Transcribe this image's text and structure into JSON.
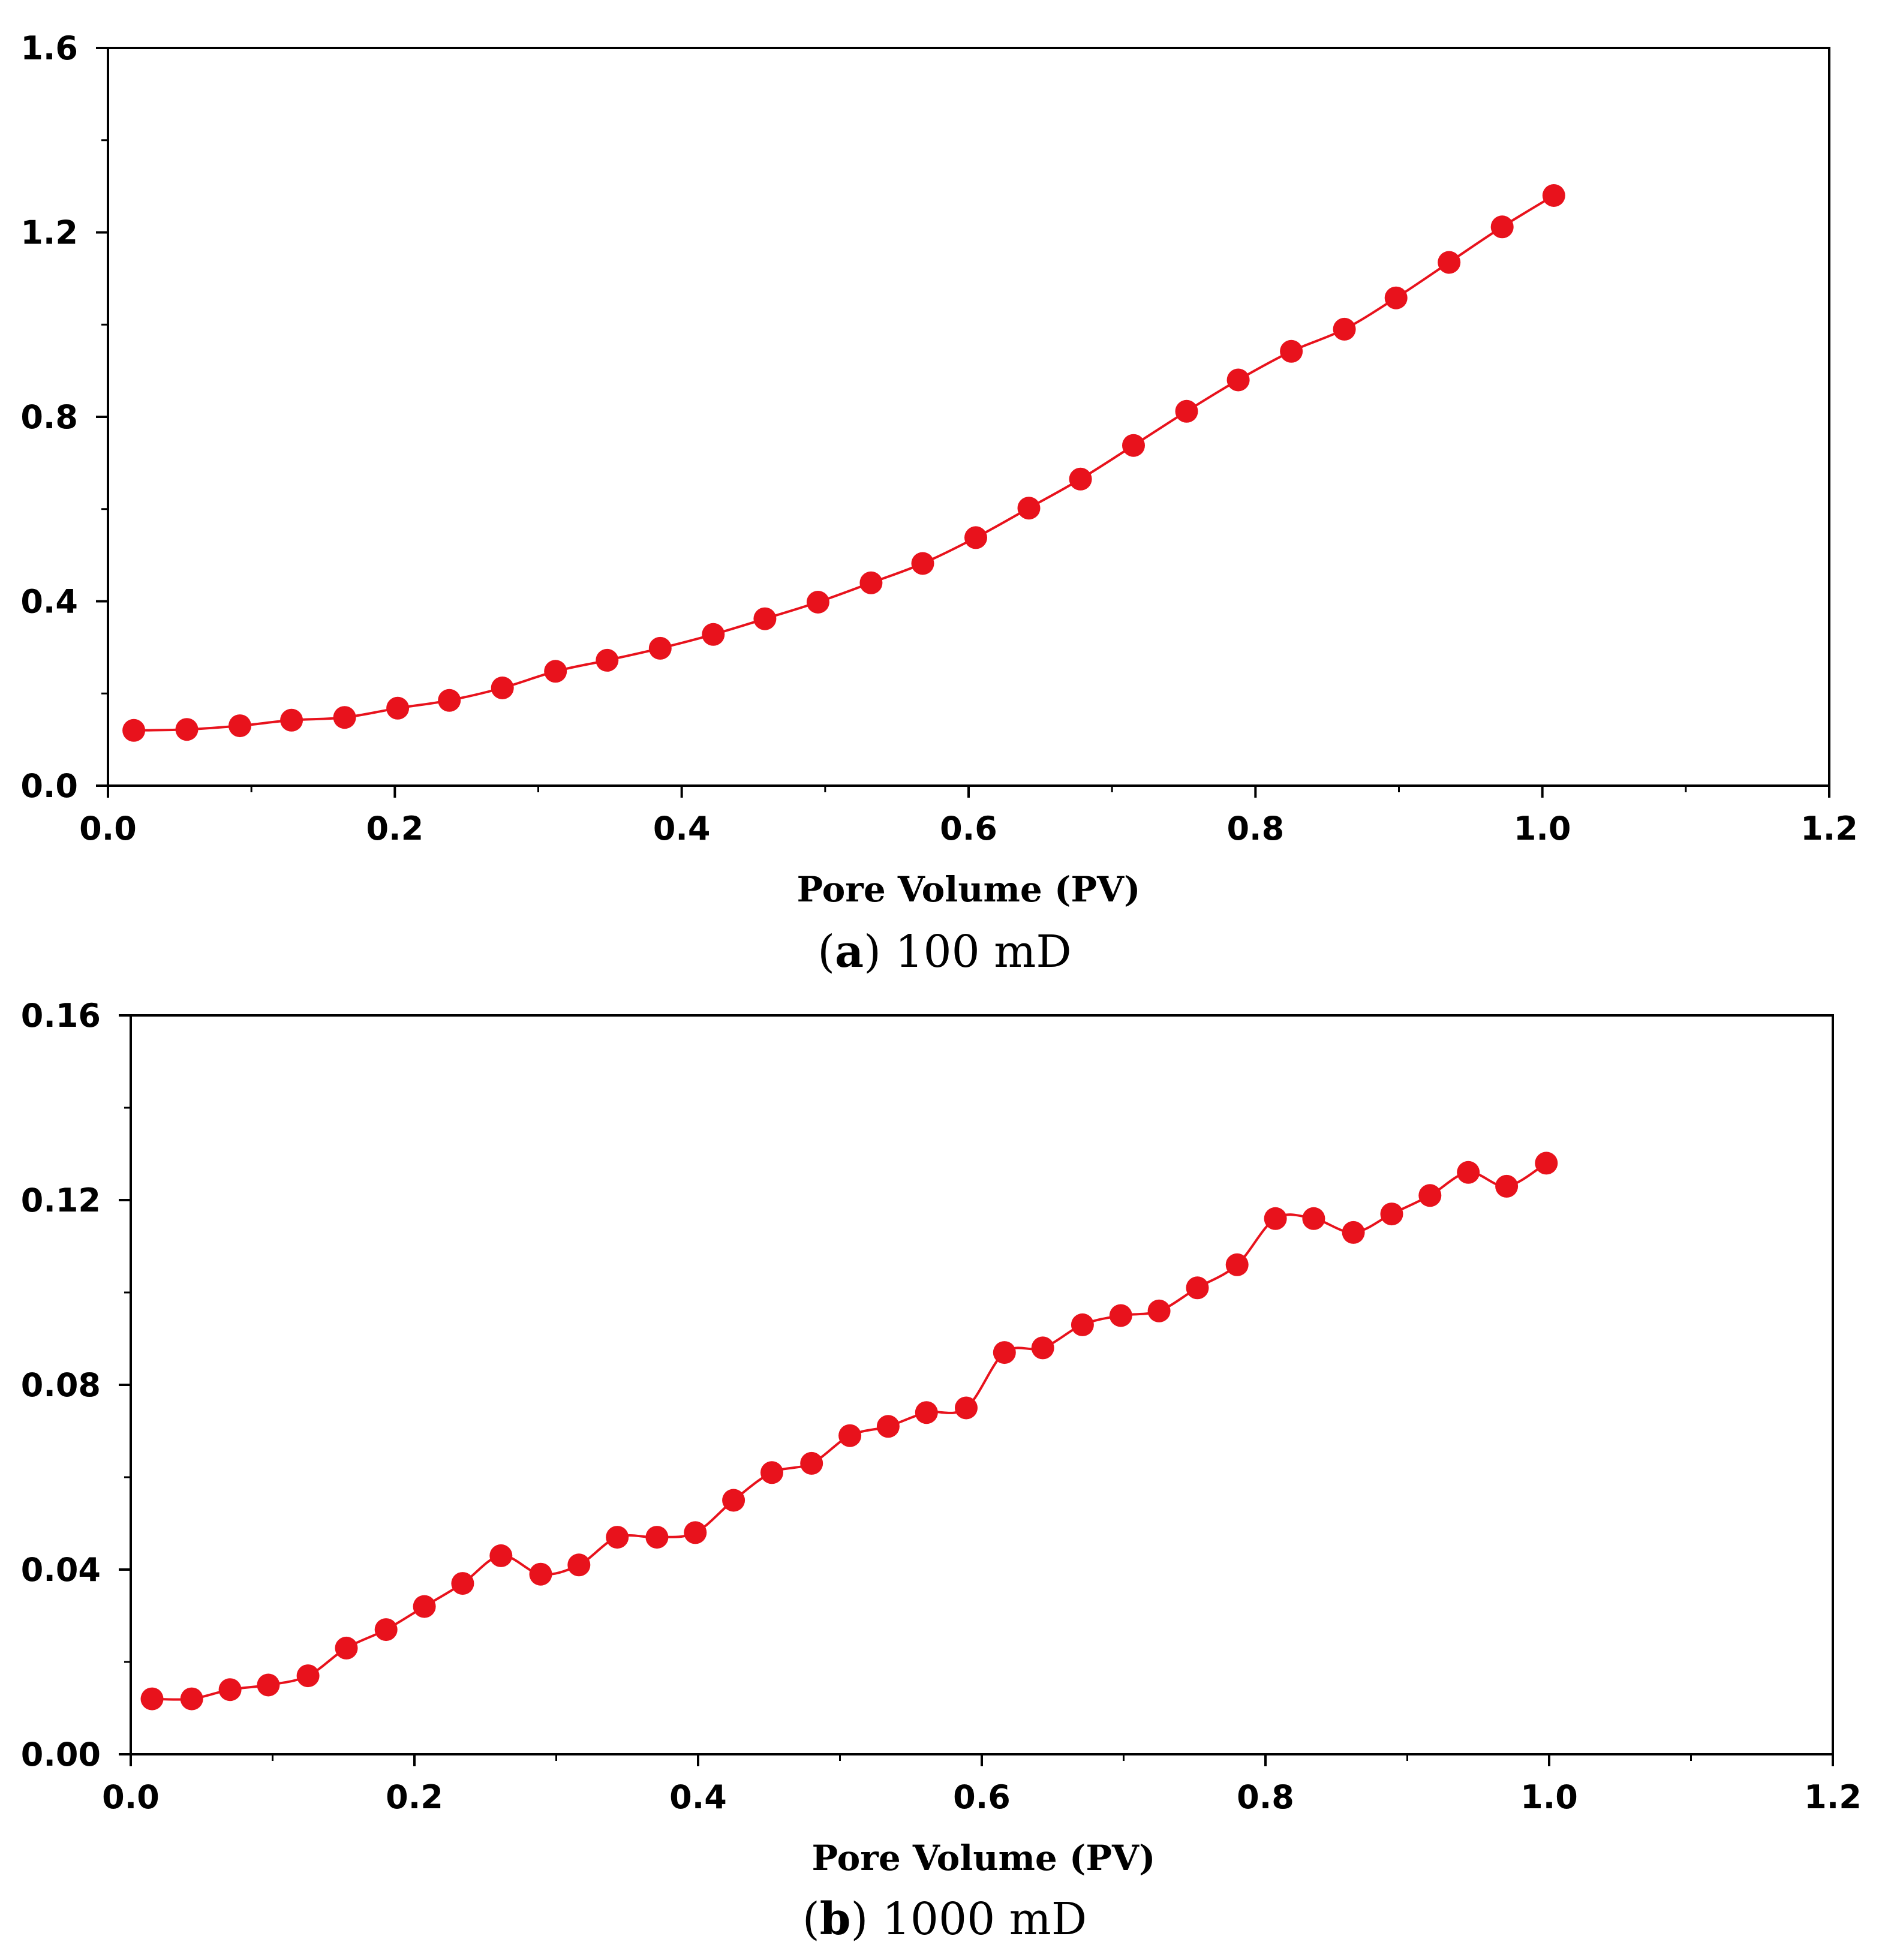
{
  "colors": {
    "series": "#e8121c",
    "axis": "#000000",
    "background": "#ffffff"
  },
  "chart_data": [
    {
      "type": "line",
      "title": "",
      "xlabel": "Pore Volume (PV)",
      "ylabel": "",
      "caption_letter": "a",
      "caption_text": " 100 mD",
      "caption_open": "(",
      "caption_close": ")",
      "xlim": [
        0.0,
        1.2
      ],
      "ylim": [
        0.0,
        1.6
      ],
      "xticks": [
        "0.0",
        "0.2",
        "0.4",
        "0.6",
        "0.8",
        "1.0",
        "1.2"
      ],
      "yticks": [
        "0.0",
        "0.4",
        "0.8",
        "1.2",
        "1.6"
      ],
      "xtick_values": [
        0.0,
        0.2,
        0.4,
        0.6,
        0.8,
        1.0,
        1.2
      ],
      "ytick_values": [
        0.0,
        0.4,
        0.8,
        1.2,
        1.6
      ],
      "series": [
        {
          "name": "100 mD",
          "x": [
            0.018,
            0.055,
            0.092,
            0.128,
            0.165,
            0.202,
            0.238,
            0.275,
            0.312,
            0.348,
            0.385,
            0.422,
            0.458,
            0.495,
            0.532,
            0.568,
            0.605,
            0.642,
            0.678,
            0.715,
            0.752,
            0.788,
            0.825,
            0.862,
            0.898,
            0.935,
            0.972,
            1.008
          ],
          "y": [
            0.12,
            0.122,
            0.13,
            0.142,
            0.148,
            0.168,
            0.185,
            0.212,
            0.248,
            0.272,
            0.298,
            0.328,
            0.362,
            0.398,
            0.44,
            0.482,
            0.538,
            0.602,
            0.665,
            0.738,
            0.812,
            0.88,
            0.942,
            0.99,
            1.058,
            1.135,
            1.212,
            1.28
          ]
        }
      ]
    },
    {
      "type": "line",
      "title": "",
      "xlabel": "Pore Volume (PV)",
      "ylabel": "",
      "caption_letter": "b",
      "caption_text": " 1000 mD",
      "caption_open": "(",
      "caption_close": ")",
      "xlim": [
        0.0,
        1.2
      ],
      "ylim": [
        0.0,
        0.16
      ],
      "xticks": [
        "0.0",
        "0.2",
        "0.4",
        "0.6",
        "0.8",
        "1.0",
        "1.2"
      ],
      "yticks": [
        "0.00",
        "0.04",
        "0.08",
        "0.12",
        "0.16"
      ],
      "xtick_values": [
        0.0,
        0.2,
        0.4,
        0.6,
        0.8,
        1.0,
        1.2
      ],
      "ytick_values": [
        0.0,
        0.04,
        0.08,
        0.12,
        0.16
      ],
      "series": [
        {
          "name": "1000 mD",
          "x": [
            0.015,
            0.043,
            0.07,
            0.097,
            0.125,
            0.152,
            0.18,
            0.207,
            0.234,
            0.261,
            0.289,
            0.316,
            0.343,
            0.371,
            0.398,
            0.425,
            0.452,
            0.48,
            0.507,
            0.534,
            0.561,
            0.589,
            0.616,
            0.643,
            0.671,
            0.698,
            0.725,
            0.752,
            0.78,
            0.807,
            0.834,
            0.862,
            0.889,
            0.916,
            0.943,
            0.97,
            0.998
          ],
          "y": [
            0.012,
            0.012,
            0.014,
            0.015,
            0.017,
            0.023,
            0.027,
            0.032,
            0.037,
            0.043,
            0.039,
            0.041,
            0.047,
            0.047,
            0.048,
            0.055,
            0.061,
            0.063,
            0.069,
            0.071,
            0.074,
            0.075,
            0.087,
            0.088,
            0.093,
            0.095,
            0.096,
            0.101,
            0.106,
            0.116,
            0.116,
            0.113,
            0.117,
            0.121,
            0.126,
            0.123,
            0.128
          ]
        }
      ]
    }
  ]
}
